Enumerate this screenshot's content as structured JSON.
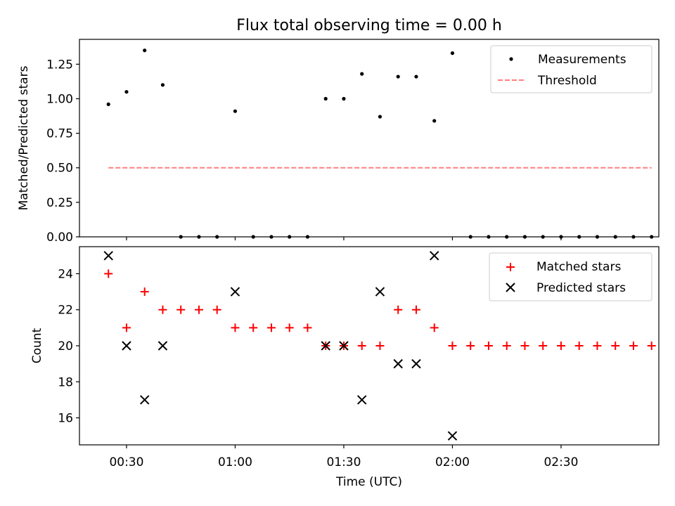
{
  "figure": {
    "title": "Flux total observing time = 0.00 h"
  },
  "chart_data": [
    {
      "type": "scatter",
      "ylabel": "Matched/Predicted stars",
      "xlabel": "",
      "ylim": [
        0,
        1.43
      ],
      "yticks": [
        0.0,
        0.25,
        0.5,
        0.75,
        1.0,
        1.25
      ],
      "yticklabels": [
        "0.00",
        "0.25",
        "0.50",
        "0.75",
        "1.00",
        "1.25"
      ],
      "grid": false,
      "legend": "upper right",
      "series": [
        {
          "name": "Measurements",
          "marker": "dot",
          "color": "#000000",
          "x": [
            "00:25",
            "00:30",
            "00:35",
            "00:40",
            "00:45",
            "00:50",
            "00:55",
            "01:00",
            "01:05",
            "01:10",
            "01:15",
            "01:20",
            "01:25",
            "01:30",
            "01:35",
            "01:40",
            "01:45",
            "01:50",
            "01:55",
            "02:00",
            "02:05",
            "02:10",
            "02:15",
            "02:20",
            "02:25",
            "02:30",
            "02:35",
            "02:40",
            "02:45",
            "02:50",
            "02:55"
          ],
          "y": [
            0.96,
            1.05,
            1.35,
            1.1,
            0.0,
            0.0,
            0.0,
            0.91,
            0.0,
            0.0,
            0.0,
            0.0,
            1.0,
            1.0,
            1.18,
            0.87,
            1.16,
            1.16,
            0.84,
            1.33,
            0.0,
            0.0,
            0.0,
            0.0,
            0.0,
            0.0,
            0.0,
            0.0,
            0.0,
            0.0,
            0.0
          ]
        },
        {
          "name": "Threshold",
          "marker": "dashed-line",
          "color": "#ff7f7f",
          "x": [
            "00:25",
            "02:55"
          ],
          "y": [
            0.5,
            0.5
          ]
        }
      ]
    },
    {
      "type": "scatter",
      "ylabel": "Count",
      "xlabel": "Time (UTC)",
      "ylim": [
        14.5,
        25.5
      ],
      "yticks": [
        16,
        18,
        20,
        22,
        24
      ],
      "yticklabels": [
        "16",
        "18",
        "20",
        "22",
        "24"
      ],
      "xlim": [
        "00:17",
        "02:57"
      ],
      "xticks": [
        "00:30",
        "01:00",
        "01:30",
        "02:00",
        "02:30"
      ],
      "xticklabels": [
        "00:30",
        "01:00",
        "01:30",
        "02:00",
        "02:30"
      ],
      "grid": false,
      "legend": "upper right",
      "series": [
        {
          "name": "Matched stars",
          "marker": "plus",
          "color": "#ff0000",
          "x": [
            "00:25",
            "00:30",
            "00:35",
            "00:40",
            "00:45",
            "00:50",
            "00:55",
            "01:00",
            "01:05",
            "01:10",
            "01:15",
            "01:20",
            "01:25",
            "01:30",
            "01:35",
            "01:40",
            "01:45",
            "01:50",
            "01:55",
            "02:00",
            "02:05",
            "02:10",
            "02:15",
            "02:20",
            "02:25",
            "02:30",
            "02:35",
            "02:40",
            "02:45",
            "02:50",
            "02:55"
          ],
          "y": [
            24,
            21,
            23,
            22,
            22,
            22,
            22,
            21,
            21,
            21,
            21,
            21,
            20,
            20,
            20,
            20,
            22,
            22,
            21,
            20,
            20,
            20,
            20,
            20,
            20,
            20,
            20,
            20,
            20,
            20,
            20
          ]
        },
        {
          "name": "Predicted stars",
          "marker": "x",
          "color": "#000000",
          "x": [
            "00:25",
            "00:30",
            "00:35",
            "00:40",
            "01:00",
            "01:25",
            "01:30",
            "01:35",
            "01:40",
            "01:45",
            "01:50",
            "01:55",
            "02:00"
          ],
          "y": [
            25,
            20,
            17,
            20,
            23,
            20,
            20,
            17,
            23,
            19,
            19,
            25,
            15
          ]
        }
      ]
    }
  ]
}
